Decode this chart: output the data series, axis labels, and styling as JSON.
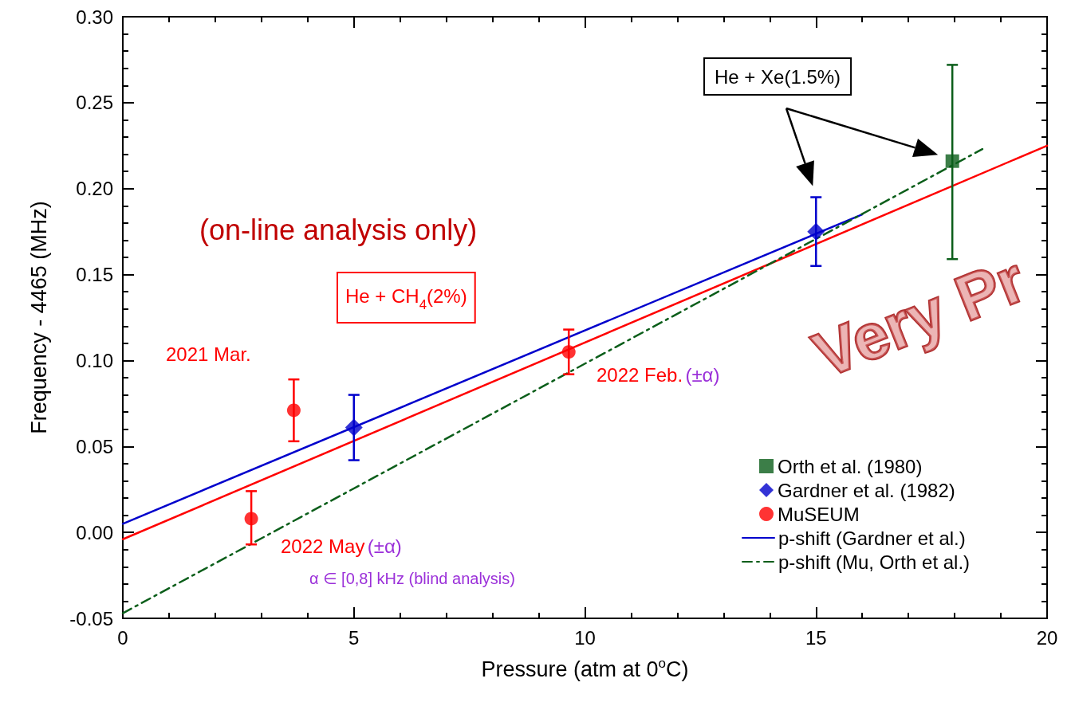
{
  "chart_data": {
    "type": "scatter",
    "xlabel": "Pressure (atm at 0$^{o}$C)",
    "ylabel": "Frequency - 4465 (MHz)",
    "xlim": [
      0,
      20
    ],
    "xticks": [
      0,
      5,
      10,
      15,
      20
    ],
    "ylim": [
      -0.05,
      0.3
    ],
    "yticks": [
      {
        "value": -0.05,
        "label": "-0.05"
      },
      {
        "value": 0,
        "label": "0.00"
      },
      {
        "value": 0.05,
        "label": "0.05"
      },
      {
        "value": 0.1,
        "label": "0.10"
      },
      {
        "value": 0.15,
        "label": "0.15"
      },
      {
        "value": 0.2,
        "label": "0.20"
      },
      {
        "value": 0.25,
        "label": "0.25"
      },
      {
        "value": 0.3,
        "label": "0.30"
      }
    ],
    "grid": false,
    "legend": "bottom right",
    "series": [
      {
        "name": "Orth et al. (1980)",
        "marker": "square",
        "color": "#0b5e1a",
        "x": [
          17.95
        ],
        "values": [
          0.216
        ],
        "errors": [
          [
            0.159,
            0.272
          ]
        ]
      },
      {
        "name": "Gardner et al. (1982)",
        "marker": "diamond",
        "color": "#0000cc",
        "x": [
          5,
          15
        ],
        "values": [
          0.061,
          0.175
        ],
        "errors": [
          [
            0.042,
            0.08
          ],
          [
            0.155,
            0.195
          ]
        ]
      },
      {
        "name": "MuSEUM",
        "marker": "circle",
        "color": "#ff0000",
        "x": [
          2.78,
          3.7,
          9.65
        ],
        "values": [
          0.008,
          0.071,
          0.105
        ],
        "errors": [
          [
            -0.007,
            0.024
          ],
          [
            0.053,
            0.089
          ],
          [
            0.092,
            0.118
          ]
        ]
      },
      {
        "type": "line",
        "color": "#ff0000",
        "line_style": "solid",
        "x": [
          0,
          20
        ],
        "values": [
          -0.004,
          0.225
        ]
      },
      {
        "name": "p-shift (Gardner et al.)",
        "type": "line",
        "line_style": "solid",
        "color": "#0000cc",
        "x": [
          0,
          16
        ],
        "values": [
          0.005,
          0.185
        ]
      },
      {
        "name": "p-shift (Mu, Orth et al.)",
        "type": "line",
        "line_style": "dashed",
        "color": "#0b5e1a",
        "x": [
          0,
          18.6
        ],
        "values": [
          -0.047,
          0.223
        ]
      }
    ],
    "annotations": [
      "(on-line analysis only)",
      "He + CH$_{4}$(2%)",
      "2021 Mar.",
      "2022 Feb.",
      "(±α)",
      "2022 May",
      "(±α)",
      "α ∈ [0,8] kHz (blind analysis)",
      "He + Xe(1.5%)",
      "Very Pr"
    ]
  }
}
